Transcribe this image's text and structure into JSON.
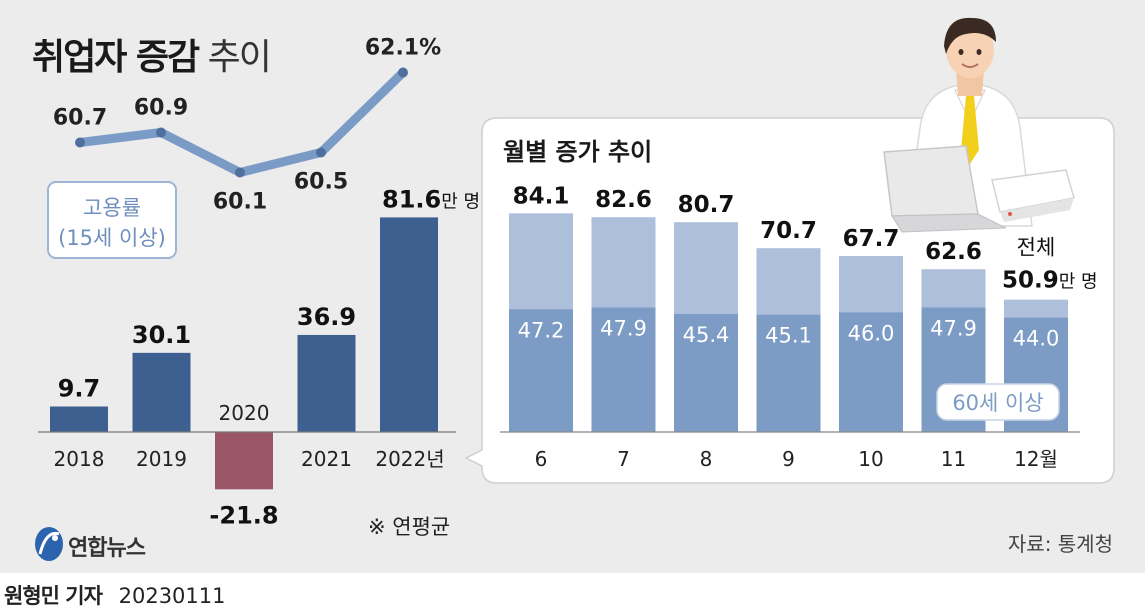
{
  "title": {
    "bold": "취업자 증감",
    "light": "추이"
  },
  "employment_badge": {
    "line1": "고용률",
    "line2": "(15세 이상)"
  },
  "monthly_title": "월별 증가 추이",
  "total_label": "전체",
  "senior_label": "60세 이상",
  "unit_label": "만 명",
  "note": "※ 연평균",
  "source": "자료: 통계청",
  "logo": {
    "text": "연합뉴스"
  },
  "byline": {
    "name": "원형민 기자",
    "date": "20230111"
  },
  "colors": {
    "bar": "#3e6090",
    "negative": "#9a5566",
    "line": "#7b9bc7",
    "total": "#aebfdb",
    "senior": "#7c9cc5",
    "panel": "#ececec"
  },
  "chart_data": [
    {
      "type": "bar",
      "categories": [
        "2018",
        "2019",
        "2020",
        "2021",
        "2022년"
      ],
      "values": [
        9.7,
        30.1,
        -21.8,
        36.9,
        81.6
      ],
      "value_labels": [
        "9.7",
        "30.1",
        "-21.8",
        "36.9",
        "81.6"
      ],
      "unit": "만 명",
      "ylim": [
        -30,
        90
      ]
    },
    {
      "type": "line",
      "categories": [
        "2018",
        "2019",
        "2020",
        "2021",
        "2022"
      ],
      "values": [
        60.7,
        60.9,
        60.1,
        60.5,
        62.1
      ],
      "value_labels": [
        "60.7",
        "60.9",
        "60.1",
        "60.5",
        "62.1%"
      ],
      "ylim": [
        59.5,
        62.5
      ]
    },
    {
      "type": "bar",
      "title": "월별 증가 추이",
      "categories": [
        "6",
        "7",
        "8",
        "9",
        "10",
        "11",
        "12월"
      ],
      "series": [
        {
          "name": "전체",
          "values": [
            84.1,
            82.6,
            80.7,
            70.7,
            67.7,
            62.6,
            50.9
          ],
          "labels": [
            "84.1",
            "82.6",
            "80.7",
            "70.7",
            "67.7",
            "62.6",
            "50.9"
          ]
        },
        {
          "name": "60세 이상",
          "values": [
            47.2,
            47.9,
            45.4,
            45.1,
            46.0,
            47.9,
            44.0
          ],
          "labels": [
            "47.2",
            "47.9",
            "45.4",
            "45.1",
            "46.0",
            "47.9",
            "44.0"
          ]
        }
      ],
      "unit": "만 명",
      "ylim": [
        0,
        90
      ]
    }
  ]
}
